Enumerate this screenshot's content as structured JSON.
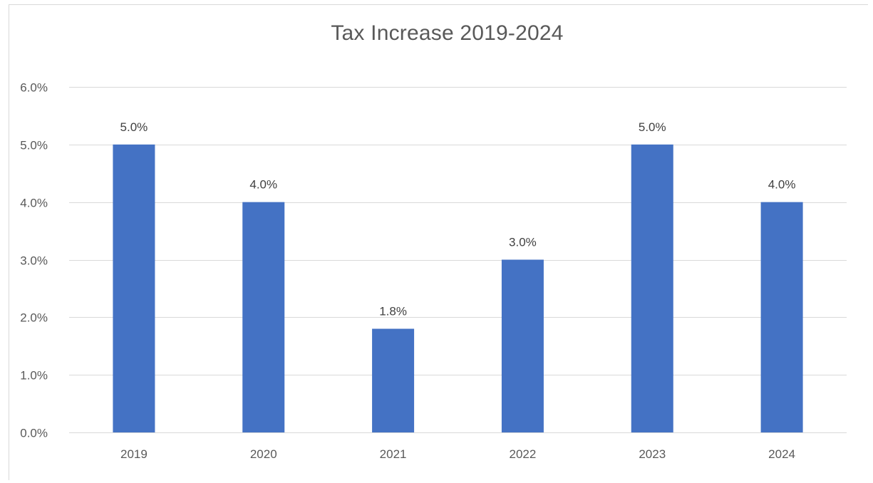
{
  "chart_data": {
    "type": "bar",
    "title": "Tax Increase  2019-2024",
    "xlabel": "",
    "ylabel": "",
    "categories": [
      "2019",
      "2020",
      "2021",
      "2022",
      "2023",
      "2024"
    ],
    "values": [
      5.0,
      4.0,
      1.8,
      3.0,
      5.0,
      4.0
    ],
    "data_labels": [
      "5.0%",
      "4.0%",
      "1.8%",
      "3.0%",
      "5.0%",
      "4.0%"
    ],
    "ylim": [
      0,
      6
    ],
    "y_ticks": [
      0,
      1,
      2,
      3,
      4,
      5,
      6
    ],
    "y_tick_labels": [
      "0.0%",
      "1.0%",
      "2.0%",
      "3.0%",
      "4.0%",
      "5.0%",
      "6.0%"
    ],
    "grid": true,
    "legend": "none",
    "colors": {
      "bar": "#4472c4",
      "grid": "#d9d9d9",
      "text": "#595959"
    }
  }
}
